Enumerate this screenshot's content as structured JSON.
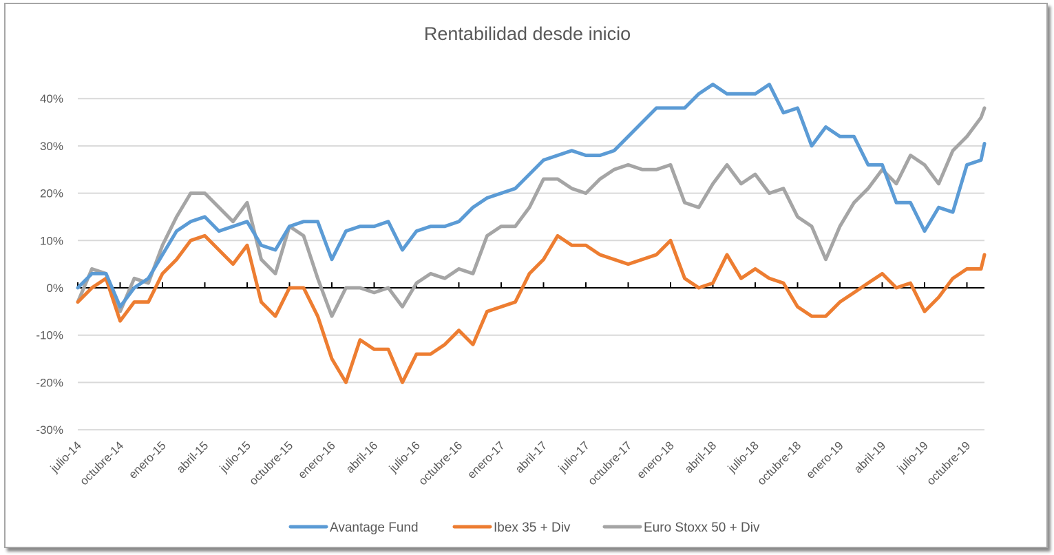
{
  "chart_data": {
    "type": "line",
    "title": "Rentabilidad desde inicio",
    "xlabel": "",
    "ylabel": "",
    "ylim": [
      -0.3,
      0.45
    ],
    "yticks": [
      -0.3,
      -0.2,
      -0.1,
      0,
      0.1,
      0.2,
      0.3,
      0.4
    ],
    "ytick_labels": [
      "-30%",
      "-20%",
      "-10%",
      "0%",
      "10%",
      "20%",
      "30%",
      "40%"
    ],
    "xtick_labels": [
      "julio-14",
      "octubre-14",
      "enero-15",
      "abril-15",
      "julio-15",
      "octubre-15",
      "enero-16",
      "abril-16",
      "julio-16",
      "octubre-16",
      "enero-17",
      "abril-17",
      "julio-17",
      "octubre-17",
      "enero-18",
      "abril-18",
      "julio-18",
      "octubre-18",
      "enero-19",
      "abril-19",
      "julio-19",
      "octubre-19"
    ],
    "grid": true,
    "legend": "bottom",
    "x": [
      "2014-07",
      "2014-08",
      "2014-09",
      "2014-10",
      "2014-11",
      "2014-12",
      "2015-01",
      "2015-02",
      "2015-03",
      "2015-04",
      "2015-05",
      "2015-06",
      "2015-07",
      "2015-08",
      "2015-09",
      "2015-10",
      "2015-11",
      "2015-12",
      "2016-01",
      "2016-02",
      "2016-03",
      "2016-04",
      "2016-05",
      "2016-06",
      "2016-07",
      "2016-08",
      "2016-09",
      "2016-10",
      "2016-11",
      "2016-12",
      "2017-01",
      "2017-02",
      "2017-03",
      "2017-04",
      "2017-05",
      "2017-06",
      "2017-07",
      "2017-08",
      "2017-09",
      "2017-10",
      "2017-11",
      "2017-12",
      "2018-01",
      "2018-02",
      "2018-03",
      "2018-04",
      "2018-05",
      "2018-06",
      "2018-07",
      "2018-08",
      "2018-09",
      "2018-10",
      "2018-11",
      "2018-12",
      "2019-01",
      "2019-02",
      "2019-03",
      "2019-04",
      "2019-05",
      "2019-06",
      "2019-07",
      "2019-08",
      "2019-09",
      "2019-10",
      "2019-11",
      "2019-12"
    ],
    "series": [
      {
        "name": "Avantage Fund",
        "color": "#5b9bd5",
        "values": [
          0,
          3,
          3,
          -4,
          0,
          2,
          7,
          12,
          14,
          15,
          12,
          13,
          14,
          9,
          8,
          13,
          14,
          14,
          6,
          12,
          13,
          13,
          14,
          8,
          12,
          13,
          13,
          14,
          17,
          19,
          20,
          21,
          24,
          27,
          28,
          29,
          28,
          28,
          29,
          32,
          35,
          38,
          38,
          38,
          41,
          43,
          41,
          41,
          41,
          43,
          37,
          38,
          30,
          34,
          32,
          32,
          26,
          26,
          18,
          18,
          12,
          17,
          16,
          26,
          27,
          30.5
        ]
      },
      {
        "name": "Ibex 35 + Div",
        "color": "#ed7d31",
        "values": [
          -3,
          0,
          2,
          -7,
          -3,
          -3,
          3,
          6,
          10,
          11,
          8,
          5,
          9,
          -3,
          -6,
          0,
          0,
          -6,
          -15,
          -20,
          -11,
          -13,
          -13,
          -20,
          -14,
          -14,
          -12,
          -9,
          -12,
          -5,
          -4,
          -3,
          3,
          6,
          11,
          9,
          9,
          7,
          6,
          5,
          6,
          7,
          10,
          2,
          0,
          1,
          7,
          2,
          4,
          2,
          1,
          -4,
          -6,
          -6,
          -3,
          -1,
          1,
          3,
          0,
          1,
          -5,
          -2,
          2,
          4,
          4,
          7
        ]
      },
      {
        "name": "Euro Stoxx 50 + Div",
        "color": "#a5a5a5",
        "values": [
          -3,
          4,
          3,
          -5,
          2,
          1,
          9,
          15,
          20,
          20,
          17,
          14,
          18,
          6,
          3,
          13,
          11,
          2,
          -6,
          0,
          0,
          -1,
          0,
          -4,
          1,
          3,
          2,
          4,
          3,
          11,
          13,
          13,
          17,
          23,
          23,
          21,
          20,
          23,
          25,
          26,
          25,
          25,
          26,
          18,
          17,
          22,
          26,
          22,
          24,
          20,
          21,
          15,
          13,
          6,
          13,
          18,
          21,
          25,
          22,
          28,
          26,
          22,
          29,
          32,
          36,
          38
        ]
      }
    ]
  }
}
